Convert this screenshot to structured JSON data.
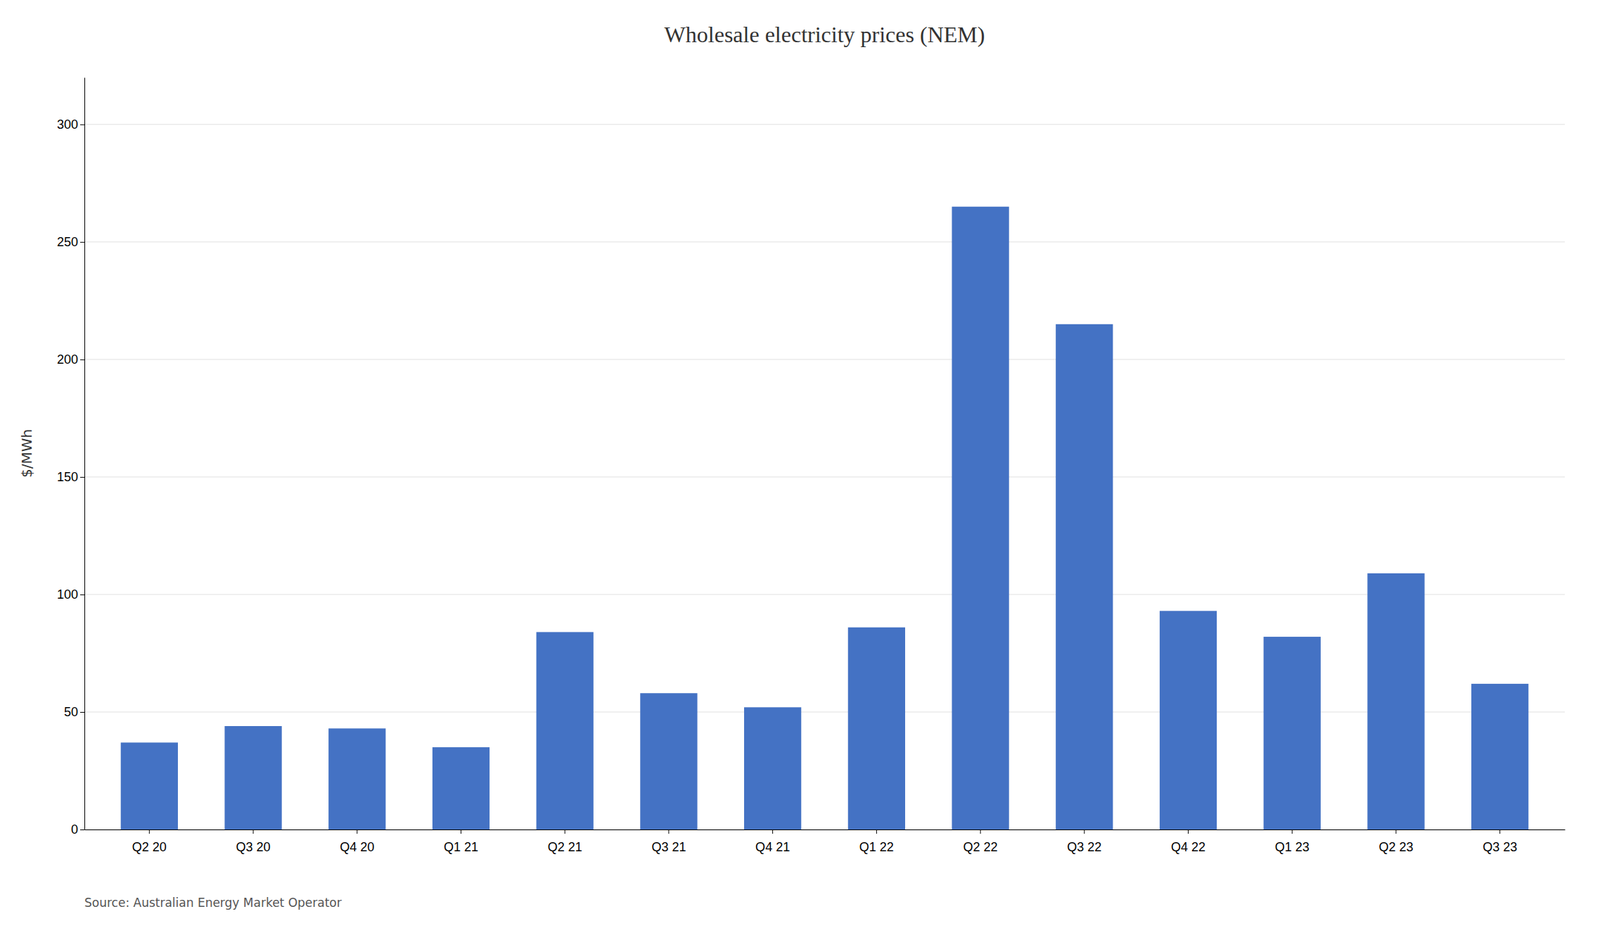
{
  "chart_data": {
    "type": "bar",
    "title": "Wholesale electricity prices (NEM)",
    "ylabel": "$/MWh",
    "source": "Source: Australian Energy Market Operator",
    "categories": [
      "Q2 20",
      "Q3 20",
      "Q4 20",
      "Q1 21",
      "Q2 21",
      "Q3 21",
      "Q4 21",
      "Q1 22",
      "Q2 22",
      "Q3 22",
      "Q4 22",
      "Q1 23",
      "Q2 23",
      "Q3 23"
    ],
    "values": [
      37,
      44,
      43,
      35,
      84,
      58,
      52,
      86,
      265,
      215,
      93,
      82,
      109,
      62
    ],
    "color": "#4472C4",
    "ylim": [
      0,
      320
    ],
    "yticks": [
      0,
      50,
      100,
      150,
      200,
      250,
      300
    ],
    "grid": true
  }
}
